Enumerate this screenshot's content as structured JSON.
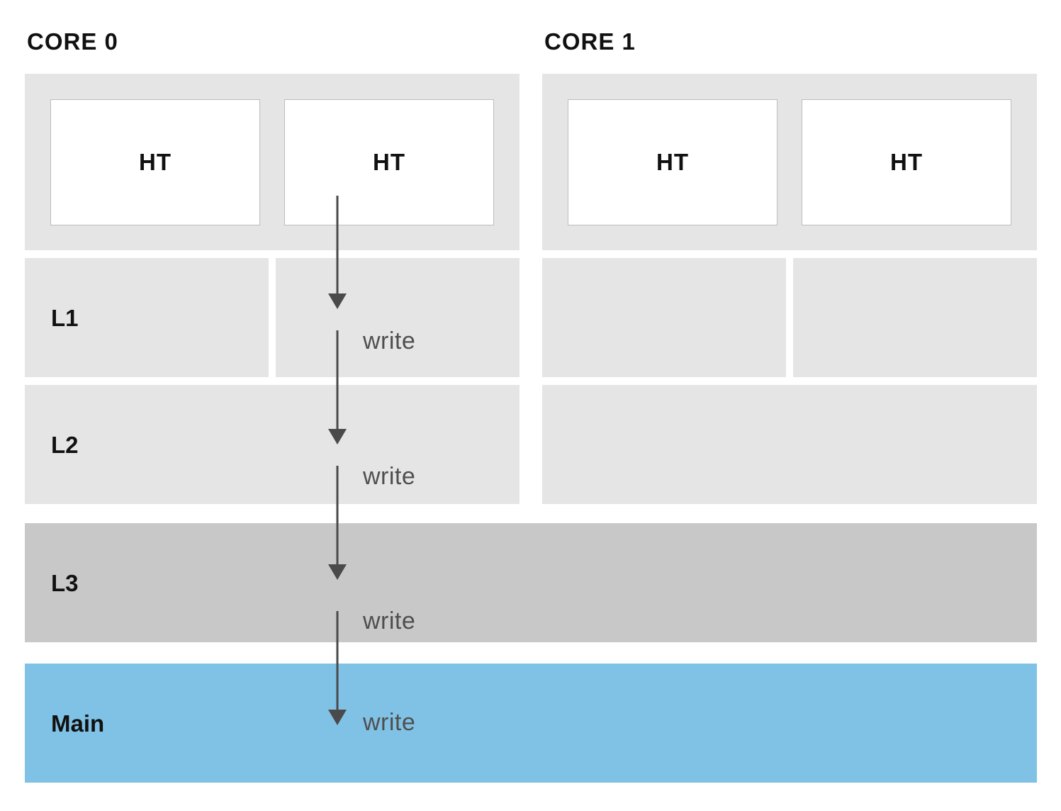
{
  "cores": [
    {
      "title": "CORE 0",
      "threads": [
        "HT",
        "HT"
      ]
    },
    {
      "title": "CORE 1",
      "threads": [
        "HT",
        "HT"
      ]
    }
  ],
  "levels": {
    "l1": "L1",
    "l2": "L2",
    "l3": "L3",
    "main": "Main"
  },
  "write_labels": [
    "write",
    "write",
    "write",
    "write"
  ],
  "colors": {
    "cache_block": "#e5e5e5",
    "l3_block": "#c8c8c8",
    "main_block": "#80c2e6",
    "arrow": "#4a4a4a"
  }
}
